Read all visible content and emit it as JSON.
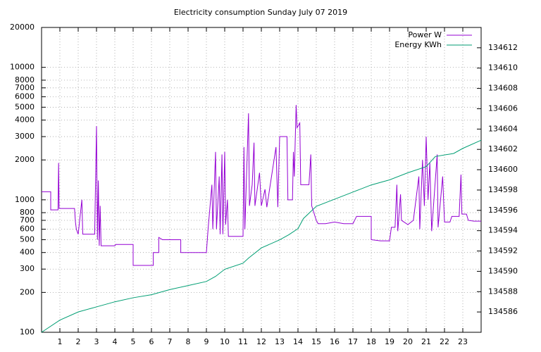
{
  "chart_data": {
    "type": "line",
    "title": "Electricity consumption Sunday July 07 2019",
    "xlim": [
      0,
      24
    ],
    "xticks": [
      1,
      2,
      3,
      4,
      5,
      6,
      7,
      8,
      9,
      10,
      11,
      12,
      13,
      14,
      15,
      16,
      17,
      18,
      19,
      20,
      21,
      22,
      23
    ],
    "ylim": [
      100,
      20000
    ],
    "yscale": "log",
    "yticks": [
      100,
      200,
      300,
      400,
      500,
      600,
      700,
      800,
      1000,
      2000,
      3000,
      4000,
      5000,
      6000,
      7000,
      8000,
      10000,
      20000
    ],
    "y2lim": [
      134584,
      134614
    ],
    "y2ticks": [
      134586,
      134588,
      134590,
      134592,
      134594,
      134596,
      134598,
      134600,
      134602,
      134604,
      134606,
      134608,
      134610,
      134612
    ],
    "grid": true,
    "legend": "top-right",
    "series": [
      {
        "name": "Power W",
        "color": "#9400d3",
        "x": [
          0,
          0.5,
          0.5,
          0.9,
          0.93,
          0.96,
          1.8,
          1.85,
          1.9,
          2.0,
          2.2,
          2.25,
          2.9,
          3.0,
          3.05,
          3.1,
          3.15,
          3.2,
          3.25,
          4.0,
          4.05,
          5.0,
          5.0,
          6.1,
          6.1,
          6.4,
          6.4,
          6.6,
          7.6,
          7.6,
          9.0,
          9.05,
          9.1,
          9.3,
          9.35,
          9.5,
          9.55,
          9.7,
          9.75,
          9.85,
          9.9,
          10.0,
          10.05,
          10.15,
          10.2,
          11.0,
          11.05,
          11.1,
          11.3,
          11.35,
          11.5,
          11.6,
          11.65,
          11.9,
          12.0,
          12.2,
          12.3,
          12.8,
          12.9,
          13.0,
          13.4,
          13.45,
          13.7,
          13.75,
          13.8,
          13.9,
          13.95,
          14.1,
          14.15,
          14.6,
          14.7,
          14.75,
          15.0,
          15.1,
          15.5,
          16.0,
          16.5,
          17.0,
          17.2,
          18.0,
          18.0,
          18.5,
          19.0,
          19.1,
          19.3,
          19.4,
          19.45,
          19.6,
          19.65,
          20.0,
          20.3,
          20.6,
          20.65,
          20.8,
          20.9,
          21.0,
          21.1,
          21.2,
          21.3,
          21.6,
          21.65,
          21.9,
          22.0,
          22.3,
          22.4,
          22.8,
          22.9,
          22.95,
          23.2,
          23.3,
          23.6,
          24.0
        ],
        "values": [
          1150,
          1150,
          840,
          840,
          1900,
          860,
          860,
          680,
          600,
          550,
          1000,
          550,
          550,
          3600,
          500,
          1400,
          450,
          900,
          450,
          450,
          460,
          460,
          320,
          320,
          400,
          400,
          520,
          500,
          500,
          400,
          400,
          500,
          620,
          1300,
          600,
          2300,
          600,
          1500,
          550,
          2200,
          550,
          2300,
          650,
          1000,
          530,
          530,
          2500,
          600,
          4500,
          900,
          1300,
          2700,
          900,
          1600,
          900,
          1200,
          880,
          2500,
          880,
          3000,
          3000,
          1000,
          1000,
          2300,
          1500,
          5200,
          3500,
          3800,
          1300,
          1300,
          2200,
          900,
          700,
          660,
          660,
          680,
          660,
          660,
          750,
          750,
          500,
          490,
          490,
          620,
          620,
          1300,
          580,
          1100,
          700,
          650,
          700,
          1500,
          600,
          2000,
          900,
          3000,
          1000,
          1900,
          580,
          2200,
          620,
          1500,
          680,
          680,
          750,
          750,
          1550,
          780,
          780,
          700,
          690,
          690
        ]
      },
      {
        "name": "Energy KWh",
        "color": "#009e73",
        "axis": "y2",
        "x": [
          0,
          1,
          2,
          3,
          4,
          5,
          6,
          7,
          8,
          9,
          9.5,
          10,
          11,
          11.3,
          12,
          13,
          13.5,
          14,
          14.3,
          15,
          16,
          17,
          18,
          19,
          20,
          21,
          21.5,
          22.5,
          23,
          24
        ],
        "values": [
          134584.0,
          134585.2,
          134586.0,
          134586.5,
          134587.0,
          134587.4,
          134587.7,
          134588.2,
          134588.6,
          134589.0,
          134589.5,
          134590.2,
          134590.8,
          134591.3,
          134592.3,
          134593.1,
          134593.6,
          134594.2,
          134595.2,
          134596.4,
          134597.1,
          134597.8,
          134598.5,
          134599.0,
          134599.7,
          134600.3,
          134601.3,
          134601.6,
          134602.1,
          134602.9
        ]
      }
    ]
  }
}
